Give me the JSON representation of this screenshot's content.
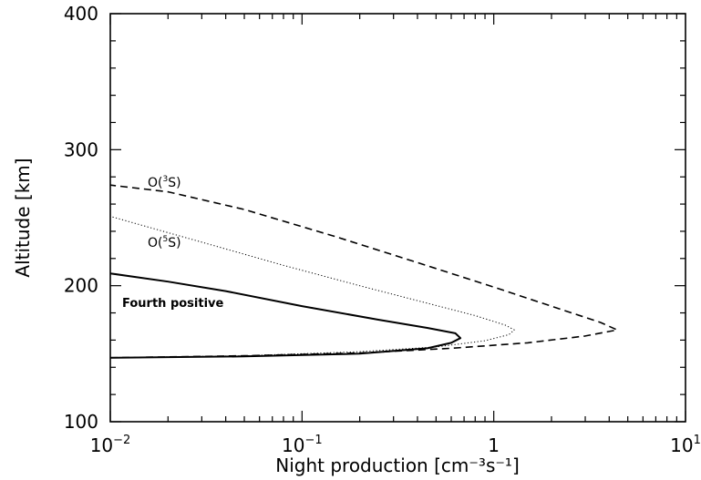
{
  "chart_data": {
    "type": "line",
    "xlabel": "Night production [cm⁻³s⁻¹]",
    "ylabel": "Altitude [km]",
    "x_scale": "log",
    "xlim": [
      0.01,
      10
    ],
    "ylim": [
      100,
      400
    ],
    "x_ticks": [
      {
        "value": 0.01,
        "base": "10",
        "exp": "−2"
      },
      {
        "value": 0.1,
        "base": "10",
        "exp": "−1"
      },
      {
        "value": 1,
        "base": "1",
        "exp": ""
      },
      {
        "value": 10,
        "base": "10",
        "exp": "1"
      }
    ],
    "y_ticks": [
      {
        "value": 100,
        "label": "100"
      },
      {
        "value": 200,
        "label": "200"
      },
      {
        "value": 300,
        "label": "300"
      },
      {
        "value": 400,
        "label": "400"
      }
    ],
    "grid": false,
    "series": [
      {
        "name": "O(³S)",
        "label_base": "O(",
        "label_sup": "3",
        "label_tail": "S)",
        "style": "dashed",
        "points": [
          [
            0.01,
            147
          ],
          [
            0.05,
            148.5
          ],
          [
            0.2,
            150.5
          ],
          [
            0.6,
            154
          ],
          [
            1.5,
            158
          ],
          [
            3,
            163
          ],
          [
            4.4,
            167.5
          ],
          [
            3.6,
            173
          ],
          [
            2.2,
            183
          ],
          [
            1.0,
            199
          ],
          [
            0.4,
            217
          ],
          [
            0.15,
            236
          ],
          [
            0.05,
            256
          ],
          [
            0.02,
            269
          ],
          [
            0.01,
            274
          ]
        ]
      },
      {
        "name": "O(⁵S)",
        "label_base": "O(",
        "label_sup": "5",
        "label_tail": "S)",
        "style": "dotted",
        "points": [
          [
            0.01,
            147
          ],
          [
            0.05,
            148.5
          ],
          [
            0.2,
            151.5
          ],
          [
            0.5,
            155
          ],
          [
            0.9,
            159.5
          ],
          [
            1.2,
            164
          ],
          [
            1.28,
            167.5
          ],
          [
            1.15,
            171
          ],
          [
            0.8,
            178
          ],
          [
            0.4,
            189
          ],
          [
            0.2,
            200
          ],
          [
            0.08,
            215
          ],
          [
            0.03,
            232
          ],
          [
            0.015,
            244
          ],
          [
            0.01,
            251
          ]
        ]
      },
      {
        "name": "Fourth positive",
        "label_base": "Fourth positive",
        "style": "solid",
        "points": [
          [
            0.01,
            147
          ],
          [
            0.05,
            148
          ],
          [
            0.2,
            150
          ],
          [
            0.45,
            154
          ],
          [
            0.6,
            158
          ],
          [
            0.67,
            161.5
          ],
          [
            0.63,
            165
          ],
          [
            0.45,
            169
          ],
          [
            0.25,
            175
          ],
          [
            0.1,
            185
          ],
          [
            0.04,
            196
          ],
          [
            0.02,
            203
          ],
          [
            0.01,
            209
          ]
        ]
      }
    ]
  }
}
